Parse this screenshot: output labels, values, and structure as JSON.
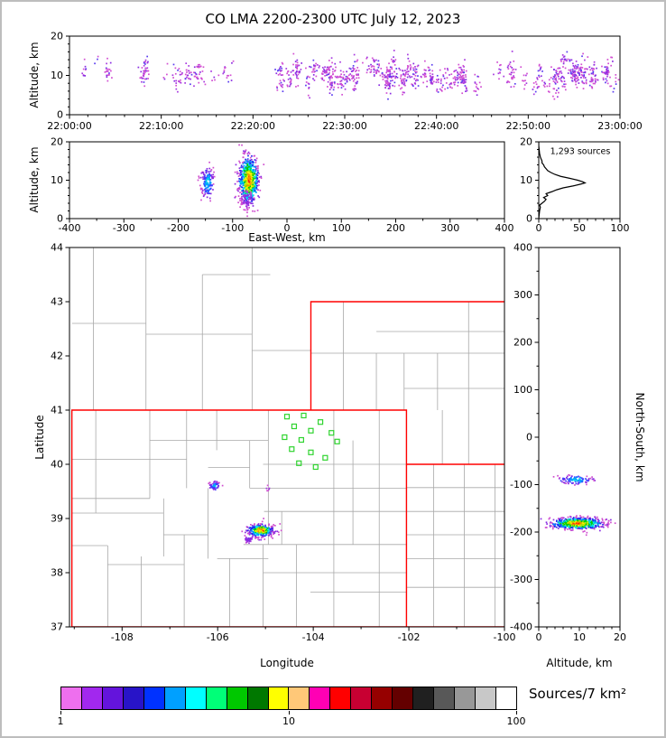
{
  "title": "CO LMA 2200-2300 UTC July 12, 2023",
  "colorbar": {
    "label": "Sources/7 km²",
    "ticks": [
      "1",
      "10",
      "100"
    ],
    "colors": [
      "#ee6fee",
      "#a228ee",
      "#6414dc",
      "#2814c8",
      "#0032ff",
      "#00a0ff",
      "#00ffff",
      "#00ff78",
      "#00c800",
      "#007800",
      "#ffff00",
      "#ffc878",
      "#ff00b4",
      "#ff0000",
      "#c80032",
      "#960000",
      "#640000",
      "#202020",
      "#585858",
      "#989898",
      "#c8c8c8",
      "#ffffff"
    ]
  },
  "palettes": {
    "sparse": [
      "#d24fd2",
      "#a83ae0",
      "#8a2be2",
      "#5a3cf0"
    ],
    "cool": [
      "#cf4ecf",
      "#8a2be2",
      "#3c3cff",
      "#00a0ff",
      "#00e0e0"
    ],
    "rainbow": [
      "#cf4ecf",
      "#8a2be2",
      "#2424ee",
      "#0096ff",
      "#00e6e6",
      "#00cc00",
      "#aadd00",
      "#ffee00",
      "#ff8800",
      "#ff2200"
    ]
  },
  "chart_data": [
    {
      "id": "time_height",
      "type": "scatter",
      "xlabel": "",
      "ylabel": "Altitude, km",
      "x_ticks": [
        "22:00:00",
        "22:10:00",
        "22:20:00",
        "22:30:00",
        "22:40:00",
        "22:50:00",
        "23:00:00"
      ],
      "x_range_seconds": [
        0,
        3600
      ],
      "ylim": [
        0,
        20
      ],
      "y_ticks": [
        0,
        10,
        20
      ],
      "clusters": [
        {
          "uniform_x": true,
          "x0": 40,
          "x1": 1360,
          "y_mean": 10,
          "y_sd": 2.6,
          "n": 170,
          "palette": "sparse"
        },
        {
          "uniform_x": true,
          "x0": 1380,
          "x1": 3020,
          "y_mean": 10,
          "y_sd": 2.9,
          "n": 720,
          "palette": "sparse"
        },
        {
          "uniform_x": true,
          "x0": 3020,
          "x1": 3590,
          "y_mean": 10,
          "y_sd": 2.7,
          "n": 300,
          "palette": "sparse"
        }
      ]
    },
    {
      "id": "east_west_height",
      "type": "scatter",
      "xlabel": "East-West, km",
      "ylabel": "Altitude, km",
      "xlim": [
        -400,
        400
      ],
      "x_ticks": [
        -400,
        -300,
        -200,
        -100,
        0,
        100,
        200,
        300,
        400
      ],
      "ylim": [
        0,
        20
      ],
      "y_ticks": [
        0,
        10,
        20
      ],
      "clusters": [
        {
          "cx": -146,
          "cy": 9.5,
          "sx": 6,
          "sy": 2.0,
          "n": 150,
          "palette": "cool"
        },
        {
          "cx": -70,
          "cy": 10,
          "sx": 9,
          "sy": 3.0,
          "n": 750,
          "palette": "rainbow"
        },
        {
          "cx": -74,
          "cy": 5,
          "sx": 5,
          "sy": 1.3,
          "n": 60,
          "palette": "sparse"
        }
      ]
    },
    {
      "id": "altitude_histogram",
      "type": "line",
      "annotation": "1,293 sources",
      "xlim": [
        0,
        100
      ],
      "x_ticks": [
        0,
        50,
        100
      ],
      "ylim": [
        0,
        20
      ],
      "y_ticks": [
        0,
        10,
        20
      ],
      "points_alt_count": [
        [
          0,
          0
        ],
        [
          1,
          0.5
        ],
        [
          2,
          1
        ],
        [
          3,
          2
        ],
        [
          3.5,
          1
        ],
        [
          4,
          4
        ],
        [
          4.5,
          7
        ],
        [
          5,
          9
        ],
        [
          5.5,
          6
        ],
        [
          6,
          11
        ],
        [
          6.5,
          9
        ],
        [
          7,
          16
        ],
        [
          7.5,
          22
        ],
        [
          8,
          30
        ],
        [
          8.5,
          42
        ],
        [
          9,
          52
        ],
        [
          9.3,
          57
        ],
        [
          9.6,
          54
        ],
        [
          10,
          48
        ],
        [
          10.5,
          38
        ],
        [
          11,
          27
        ],
        [
          11.5,
          20
        ],
        [
          12,
          15
        ],
        [
          12.5,
          11
        ],
        [
          13,
          9
        ],
        [
          13.5,
          7
        ],
        [
          14,
          6
        ],
        [
          14.5,
          4
        ],
        [
          15,
          4
        ],
        [
          15.5,
          3
        ],
        [
          16,
          2
        ],
        [
          17,
          1
        ],
        [
          18,
          0.5
        ],
        [
          19,
          0
        ],
        [
          20,
          0
        ]
      ]
    },
    {
      "id": "plan_view_map",
      "type": "scatter",
      "xlabel": "Longitude",
      "ylabel": "Latitude",
      "xlim": [
        -109.1,
        -100
      ],
      "ylim": [
        37,
        44
      ],
      "x_ticks": [
        -108,
        -106,
        -104,
        -102,
        -100
      ],
      "y_ticks": [
        37,
        38,
        39,
        40,
        41,
        42,
        43,
        44
      ],
      "stations": [
        [
          -104.55,
          40.88
        ],
        [
          -104.2,
          40.9
        ],
        [
          -103.85,
          40.78
        ],
        [
          -104.4,
          40.7
        ],
        [
          -104.05,
          40.62
        ],
        [
          -103.62,
          40.58
        ],
        [
          -104.6,
          40.5
        ],
        [
          -104.25,
          40.45
        ],
        [
          -103.5,
          40.42
        ],
        [
          -104.45,
          40.28
        ],
        [
          -104.05,
          40.22
        ],
        [
          -103.75,
          40.12
        ],
        [
          -104.3,
          40.02
        ],
        [
          -103.95,
          39.95
        ]
      ],
      "state_borders": [
        [
          [
            -109.05,
            37.0
          ],
          [
            -102.05,
            37.0
          ],
          [
            -102.05,
            41.0
          ],
          [
            -109.05,
            41.0
          ],
          [
            -109.05,
            37.0
          ]
        ],
        [
          [
            -104.05,
            41.0
          ],
          [
            -104.05,
            43.0
          ],
          [
            -100.0,
            43.0
          ]
        ],
        [
          [
            -102.05,
            40.0
          ],
          [
            -100.0,
            40.0
          ]
        ],
        [
          [
            -102.05,
            37.0
          ],
          [
            -100.0,
            37.0
          ]
        ]
      ],
      "county_lines": [
        [
          -102.62,
          37,
          -102.62,
          41
        ],
        [
          -103.57,
          37,
          -103.57,
          41
        ],
        [
          -103.17,
          38.52,
          -103.17,
          40.44
        ],
        [
          -104.35,
          37,
          -104.35,
          38.52
        ],
        [
          -104.66,
          38.52,
          -104.66,
          39.13
        ],
        [
          -104.94,
          38.52,
          -104.94,
          41
        ],
        [
          -105.33,
          39.56,
          -105.33,
          40.44
        ],
        [
          -105.05,
          37,
          -105.05,
          38.52
        ],
        [
          -105.75,
          37,
          -105.75,
          38.26
        ],
        [
          -106.2,
          38.26,
          -106.2,
          39.56
        ],
        [
          -106.7,
          37,
          -106.7,
          38.7
        ],
        [
          -107.13,
          38.3,
          -107.13,
          39.37
        ],
        [
          -107.6,
          37,
          -107.6,
          38.3
        ],
        [
          -108.3,
          37,
          -108.3,
          38.5
        ],
        [
          -107.42,
          39.37,
          -107.42,
          41
        ],
        [
          -108.55,
          39.1,
          -108.55,
          41
        ],
        [
          -106.65,
          39.56,
          -106.65,
          41
        ],
        [
          -106.02,
          40.26,
          -106.02,
          41
        ],
        [
          -105.05,
          40.0,
          -102.05,
          40.0
        ],
        [
          -105.33,
          39.56,
          -102.05,
          39.56
        ],
        [
          -105.03,
          39.13,
          -102.05,
          39.13
        ],
        [
          -105.46,
          38.52,
          -102.05,
          38.52
        ],
        [
          -105.05,
          38.0,
          -102.05,
          38.0
        ],
        [
          -104.06,
          37.64,
          -102.05,
          37.64
        ],
        [
          -106.01,
          38.26,
          -104.94,
          38.26
        ],
        [
          -107.13,
          38.7,
          -106.2,
          38.7
        ],
        [
          -109.05,
          39.1,
          -107.13,
          39.1
        ],
        [
          -109.05,
          39.37,
          -107.42,
          39.37
        ],
        [
          -109.05,
          40.09,
          -106.65,
          40.09
        ],
        [
          -107.42,
          40.44,
          -104.94,
          40.44
        ],
        [
          -109.05,
          38.5,
          -108.3,
          38.5
        ],
        [
          -108.3,
          38.15,
          -106.7,
          38.15
        ],
        [
          -106.2,
          39.94,
          -105.33,
          39.94
        ],
        [
          -105.28,
          41,
          -105.28,
          44
        ],
        [
          -106.32,
          41,
          -106.32,
          43.5
        ],
        [
          -107.5,
          41,
          -107.5,
          44
        ],
        [
          -108.6,
          41,
          -108.6,
          44
        ],
        [
          -109.05,
          42.6,
          -107.5,
          42.6
        ],
        [
          -107.5,
          42.4,
          -105.28,
          42.4
        ],
        [
          -105.28,
          42.1,
          -104.05,
          42.1
        ],
        [
          -106.32,
          43.5,
          -104.9,
          43.5
        ],
        [
          -103.37,
          41,
          -103.37,
          43
        ],
        [
          -102.68,
          41,
          -102.68,
          42.05
        ],
        [
          -102.1,
          41,
          -102.1,
          42.05
        ],
        [
          -101.4,
          41,
          -101.4,
          42.05
        ],
        [
          -100.75,
          40,
          -100.75,
          43
        ],
        [
          -104.05,
          42.05,
          -100,
          42.05
        ],
        [
          -102.68,
          42.45,
          -100,
          42.45
        ],
        [
          -102.1,
          41.4,
          -100,
          41.4
        ],
        [
          -101.3,
          40,
          -101.3,
          41
        ],
        [
          -101.48,
          37,
          -101.48,
          40
        ],
        [
          -100.84,
          37,
          -100.84,
          40
        ],
        [
          -100.2,
          37,
          -100.2,
          40
        ],
        [
          -102.05,
          37.73,
          -100,
          37.73
        ],
        [
          -102.05,
          38.26,
          -100,
          38.26
        ],
        [
          -102.05,
          38.7,
          -100,
          38.7
        ],
        [
          -102.05,
          39.13,
          -100,
          39.13
        ],
        [
          -102.05,
          39.57,
          -100,
          39.57
        ]
      ],
      "clusters": [
        {
          "cx": -105.1,
          "cy": 38.78,
          "sx": 0.13,
          "sy": 0.055,
          "n": 420,
          "palette": "rainbow"
        },
        {
          "cx": -105.35,
          "cy": 38.62,
          "sx": 0.05,
          "sy": 0.04,
          "n": 30,
          "palette": "sparse"
        },
        {
          "cx": -106.06,
          "cy": 39.6,
          "sx": 0.055,
          "sy": 0.04,
          "n": 60,
          "palette": "cool"
        },
        {
          "cx": -104.95,
          "cy": 39.55,
          "sx": 0.02,
          "sy": 0.02,
          "n": 6,
          "palette": "sparse"
        }
      ]
    },
    {
      "id": "north_south_height",
      "type": "scatter",
      "xlabel": "Altitude, km",
      "ylabel": "North-South, km",
      "xlim": [
        0,
        20
      ],
      "ylim": [
        -400,
        400
      ],
      "x_ticks": [
        0,
        10,
        20
      ],
      "y_ticks": [
        -400,
        -300,
        -200,
        -100,
        0,
        100,
        200,
        300,
        400
      ],
      "clusters": [
        {
          "cx": 9,
          "cy": -90,
          "sx": 2.2,
          "sy": 5,
          "n": 110,
          "palette": "cool"
        },
        {
          "cx": 9.5,
          "cy": -182,
          "sx": 3.2,
          "sy": 6,
          "n": 650,
          "palette": "rainbow"
        }
      ]
    }
  ]
}
